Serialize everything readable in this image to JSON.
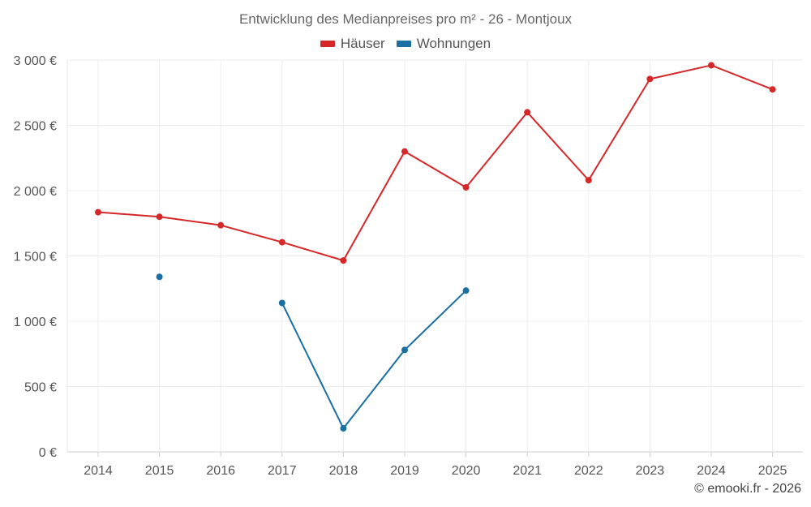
{
  "chart_data": {
    "type": "line",
    "title": "Entwicklung des Medianpreises pro m² - 26 - Montjoux",
    "xlabel": "",
    "ylabel": "",
    "categories": [
      "2014",
      "2015",
      "2016",
      "2017",
      "2018",
      "2019",
      "2020",
      "2021",
      "2022",
      "2023",
      "2024",
      "2025"
    ],
    "ylim": [
      0,
      3000
    ],
    "yticks": [
      0,
      500,
      1000,
      1500,
      2000,
      2500,
      3000
    ],
    "ytick_labels": [
      "0 €",
      "500 €",
      "1 000 €",
      "1 500 €",
      "2 000 €",
      "2 500 €",
      "3 000 €"
    ],
    "grid": true,
    "legend_position": "top-center",
    "series": [
      {
        "name": "Häuser",
        "color": "#d62728",
        "values": [
          1835,
          1800,
          1735,
          1605,
          1465,
          2300,
          2025,
          2600,
          2080,
          2855,
          2960,
          2775
        ]
      },
      {
        "name": "Wohnungen",
        "color": "#1a6fa3",
        "values": [
          null,
          1340,
          null,
          1140,
          180,
          780,
          1235,
          null,
          null,
          null,
          null,
          null
        ]
      }
    ],
    "credit": "© emooki.fr - 2026"
  }
}
